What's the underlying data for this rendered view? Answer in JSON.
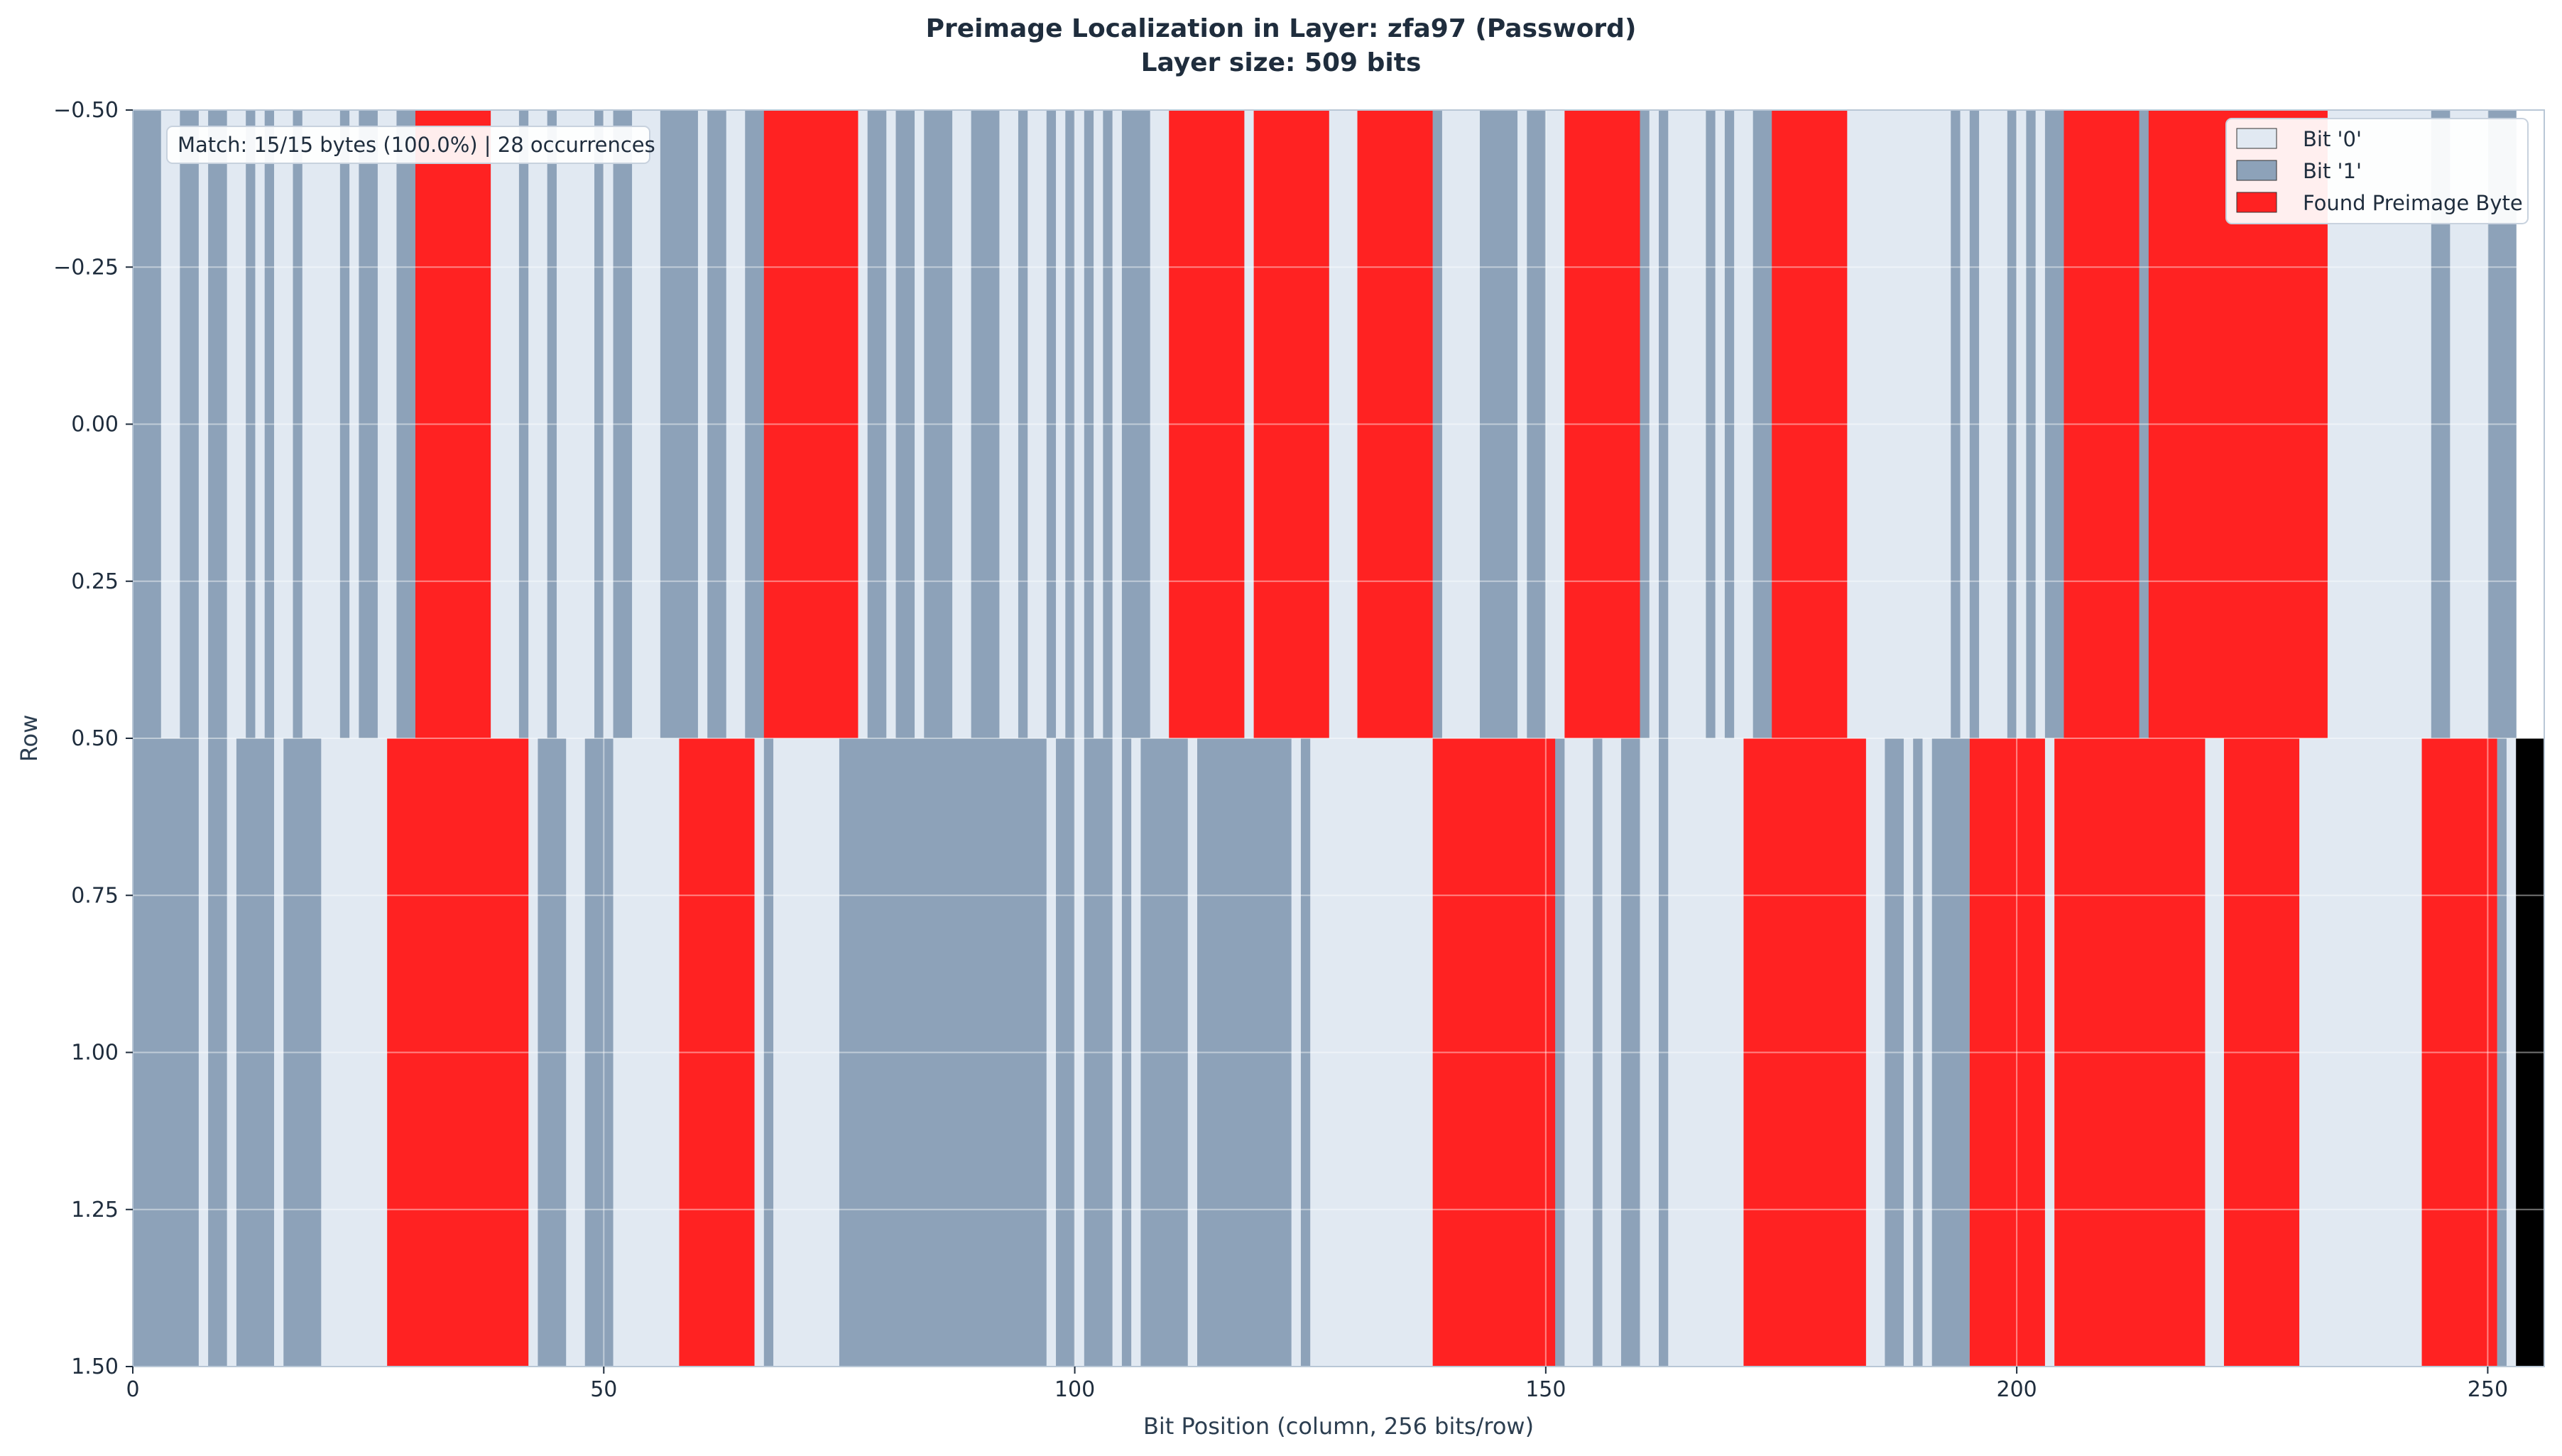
{
  "chart_data": {
    "type": "heatmap",
    "title": "Preimage Localization in Layer: zfa97 (Password)",
    "subtitle": "Layer size: 509 bits",
    "xlabel": "Bit Position (column, 256 bits/row)",
    "ylabel": "Row",
    "xlim": [
      0,
      256
    ],
    "ylim": [
      1.5,
      -0.5
    ],
    "x_ticks": [
      0,
      50,
      100,
      150,
      200,
      250
    ],
    "x_tick_labels": [
      "0",
      "50",
      "100",
      "150",
      "200",
      "250"
    ],
    "y_ticks": [
      -0.5,
      -0.25,
      0,
      0.25,
      0.5,
      0.75,
      1.0,
      1.25,
      1.5
    ],
    "y_tick_labels": [
      "−0.50",
      "−0.25",
      "0.00",
      "0.25",
      "0.50",
      "0.75",
      "1.00",
      "1.25",
      "1.50"
    ],
    "grid": true,
    "legend_position": "top-right",
    "legend": [
      {
        "label": "Bit '0'",
        "color": "#e1e9f2"
      },
      {
        "label": "Bit '1'",
        "color": "#8da2b9"
      },
      {
        "label": "Found Preimage Byte",
        "color": "#ff2222"
      }
    ],
    "annotation": "Match: 15/15 bytes (100.0%) | 28 occurrences",
    "colors": {
      "bit0": "#e1e9f2",
      "bit1": "#8da2b9",
      "preimage": "#ff2222",
      "padding": "#000000"
    },
    "rows": [
      {
        "row": 0,
        "bit_segments": "1110011011001010010000101100111100000100010010000101100011110110011101010001001101101110011100100101010101110000100101000011001000000000101000011110110000010010101000010100111000000000000000000101000101011100101111101001010000000000000000000000110000111",
        "preimage_segments": [
          [
            30,
            38
          ],
          [
            67,
            77
          ],
          [
            110,
            118
          ],
          [
            119,
            127
          ],
          [
            130,
            138
          ],
          [
            152,
            160
          ],
          [
            174,
            182
          ],
          [
            205,
            213
          ],
          [
            214,
            233
          ]
        ]
      },
      {
        "row": 1,
        "bit_segments": "1111111011011110111100000000000000000000110111001110000000000000000100000001111111111111111111111011011101011111011111111110100000000000000000000000011100010011001000000000000000000000001101011110000000000000000000000000000110011000000000000000001001010",
        "preimage_segments": [
          [
            27,
            42
          ],
          [
            58,
            66
          ],
          [
            138,
            151
          ],
          [
            171,
            184
          ],
          [
            195,
            203
          ],
          [
            204,
            220
          ],
          [
            222,
            230
          ],
          [
            243,
            251
          ]
        ],
        "padding": [
          253,
          256
        ]
      }
    ]
  }
}
